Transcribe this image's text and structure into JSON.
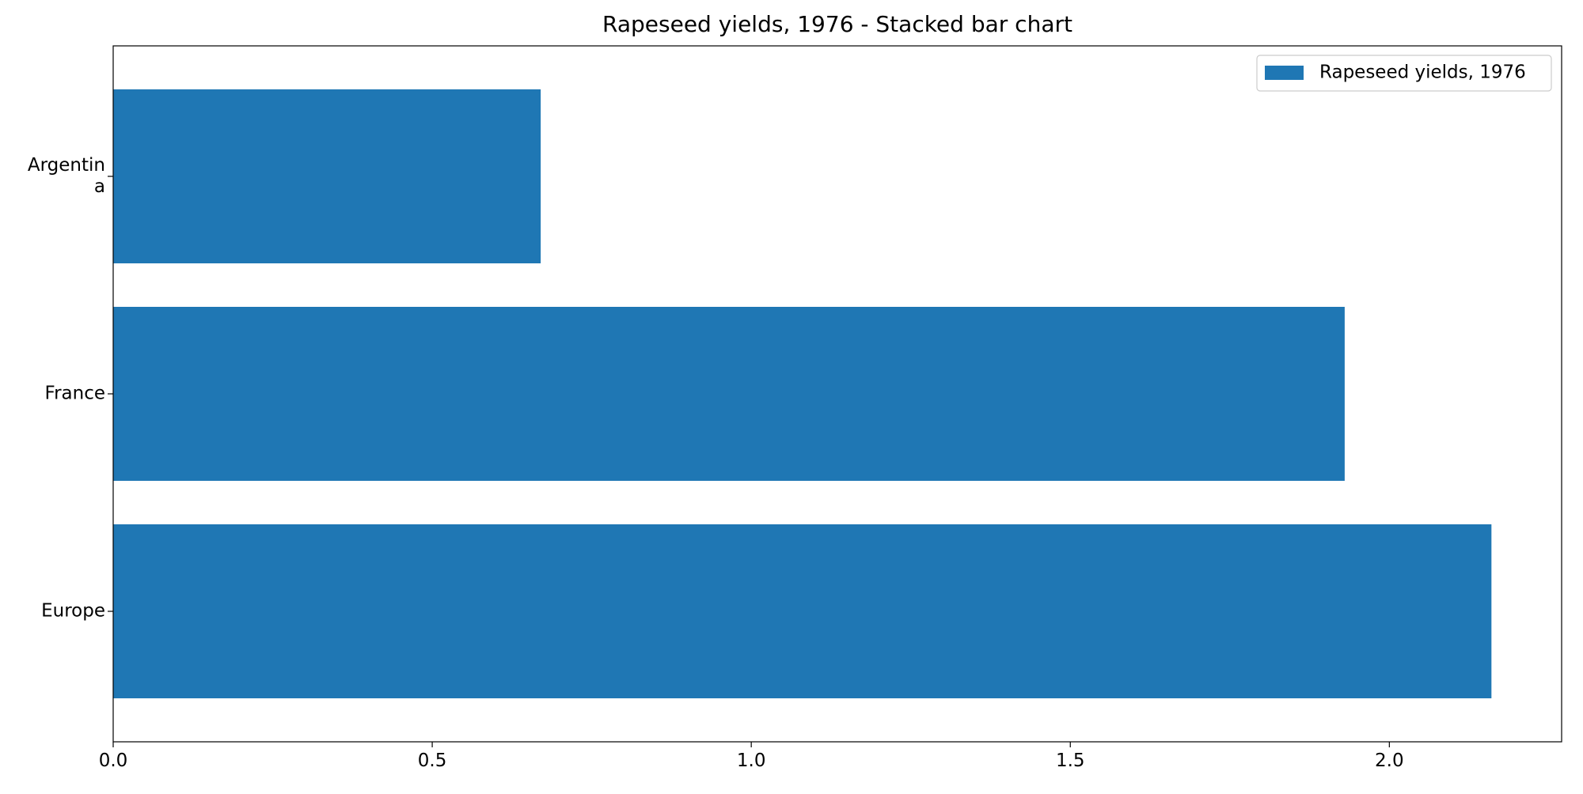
{
  "chart_data": {
    "type": "bar",
    "orientation": "horizontal",
    "title": "Rapeseed yields, 1976 - Stacked bar chart",
    "xlabel": "",
    "ylabel": "",
    "categories": [
      [
        "Argentin",
        "a"
      ],
      [
        "France"
      ],
      [
        "Europe"
      ]
    ],
    "series": [
      {
        "name": "Rapeseed yields, 1976",
        "values": [
          0.67,
          1.93,
          2.16
        ],
        "color": "#1f77b4"
      }
    ],
    "xlim": [
      0,
      2.27
    ],
    "xticks": [
      "0.0",
      "0.5",
      "1.0",
      "1.5",
      "2.0"
    ],
    "grid": false,
    "legend_position": "top-right"
  }
}
